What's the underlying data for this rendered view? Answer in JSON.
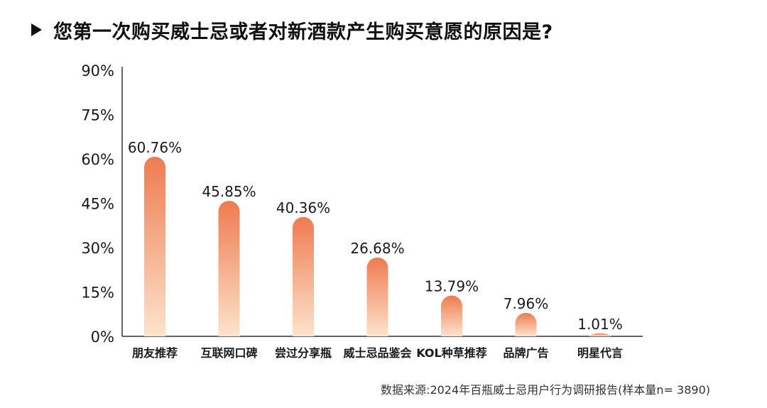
{
  "title": "您第一次购买威士忌或者对新酒款产生购买意愿的原因是?",
  "footnote": "数据来源:2024年百瓶威士忌用户行为调研报告(样本量n= 3890)",
  "colors": {
    "bar_top": "#ee7b50",
    "bar_bottom": "#fde3cc",
    "axis": "#333333",
    "text": "#1a1a1a"
  },
  "chart_data": {
    "type": "bar",
    "title": "您第一次购买威士忌或者对新酒款产生购买意愿的原因是?",
    "xlabel": "",
    "ylabel": "",
    "categories": [
      "朋友推荐",
      "互联网口碑",
      "尝过分享瓶",
      "威士忌品鉴会",
      "KOL种草推荐",
      "品牌广告",
      "明星代言"
    ],
    "values": [
      60.76,
      45.85,
      40.36,
      26.68,
      13.79,
      7.96,
      1.01
    ],
    "data_labels": [
      "60.76%",
      "45.85%",
      "40.36%",
      "26.68%",
      "13.79%",
      "7.96%",
      "1.01%"
    ],
    "ylim": [
      0,
      90
    ],
    "yticks": [
      0,
      15,
      30,
      45,
      60,
      75,
      90
    ],
    "ytick_labels": [
      "0%",
      "15%",
      "30%",
      "45%",
      "60%",
      "75%",
      "90%"
    ],
    "grid": false,
    "legend": "none"
  }
}
